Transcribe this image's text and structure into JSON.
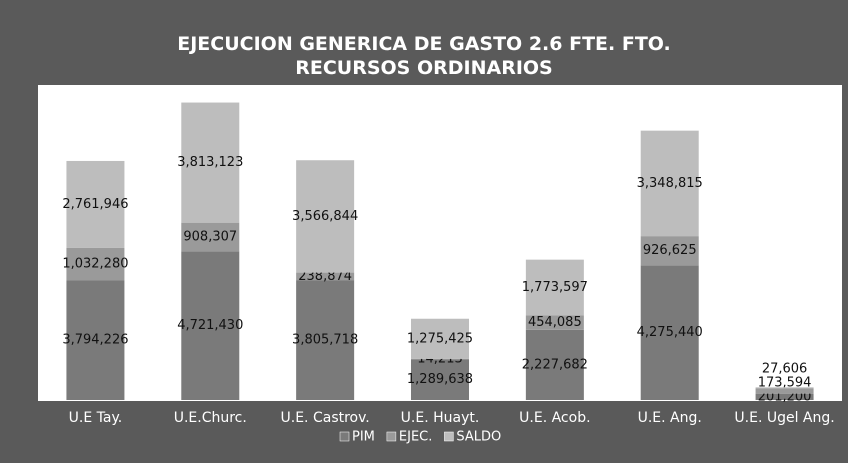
{
  "chart_data": {
    "type": "stacked_bar",
    "title": "EJECUCION GENERICA DE GASTO 2.6 FTE. FTO. RECURSOS ORDINARIOS",
    "categories": [
      "U.E Tay.",
      "U.E.Churc.",
      "U.E. Castrov.",
      "U.E. Huayt.",
      "U.E. Acob.",
      "U.E. Ang.",
      "U.E. Ugel Ang."
    ],
    "series": [
      {
        "name": "PIM",
        "color": "#7a7a7a",
        "values": [
          3794226,
          4721430,
          3805718,
          1289638,
          2227682,
          4275440,
          201200
        ],
        "value_labels": [
          "3,794,226",
          "4,721,430",
          "3,805,718",
          "1,289,638",
          "2,227,682",
          "4,275,440",
          "201,200"
        ]
      },
      {
        "name": "EJEC.",
        "color": "#9a9a9a",
        "values": [
          1032280,
          908307,
          238874,
          14213,
          454085,
          926625,
          173594
        ],
        "value_labels": [
          "1,032,280",
          "908,307",
          "238,874",
          "14,213",
          "454,085",
          "926,625",
          "173,594"
        ]
      },
      {
        "name": "SALDO",
        "color": "#bdbdbd",
        "values": [
          2761946,
          3813123,
          3566844,
          1275425,
          1773597,
          3348815,
          27606
        ],
        "value_labels": [
          "2,761,946",
          "3,813,123",
          "3,566,844",
          "1,275,425",
          "1,773,597",
          "3,348,815",
          "27,606"
        ]
      }
    ],
    "ylim": [
      0,
      10000000
    ],
    "legend": "bottom"
  }
}
